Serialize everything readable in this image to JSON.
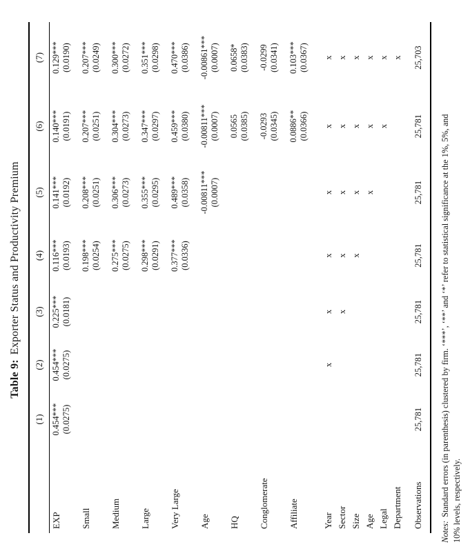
{
  "title": {
    "label": "Table 9:",
    "caption": "Exporter Status and Productivity Premium"
  },
  "table": {
    "column_headers": [
      "(1)",
      "(2)",
      "(3)",
      "(4)",
      "(5)",
      "(6)",
      "(7)"
    ],
    "coef_rows": [
      {
        "label": "EXP",
        "cells": [
          {
            "coef": "0.454***",
            "se": "(0.0275)"
          },
          {
            "coef": "0.454***",
            "se": "(0.0275)"
          },
          {
            "coef": "0.225***",
            "se": "(0.0181)"
          },
          {
            "coef": "0.116***",
            "se": "(0.0193)"
          },
          {
            "coef": "0.141***",
            "se": "(0.0192)"
          },
          {
            "coef": "0.140***",
            "se": "(0.0191)"
          },
          {
            "coef": "0.129***",
            "se": "(0.0190)"
          }
        ]
      },
      {
        "label": "Small",
        "cells": [
          {
            "coef": "",
            "se": ""
          },
          {
            "coef": "",
            "se": ""
          },
          {
            "coef": "",
            "se": ""
          },
          {
            "coef": "0.198***",
            "se": "(0.0254)"
          },
          {
            "coef": "0.208***",
            "se": "(0.0251)"
          },
          {
            "coef": "0.207***",
            "se": "(0.0251)"
          },
          {
            "coef": "0.207***",
            "se": "(0.0249)"
          }
        ]
      },
      {
        "label": "Medium",
        "cells": [
          {
            "coef": "",
            "se": ""
          },
          {
            "coef": "",
            "se": ""
          },
          {
            "coef": "",
            "se": ""
          },
          {
            "coef": "0.275***",
            "se": "(0.0275)"
          },
          {
            "coef": "0.306***",
            "se": "(0.0273)"
          },
          {
            "coef": "0.304***",
            "se": "(0.0273)"
          },
          {
            "coef": "0.300***",
            "se": "(0.0272)"
          }
        ]
      },
      {
        "label": "Large",
        "cells": [
          {
            "coef": "",
            "se": ""
          },
          {
            "coef": "",
            "se": ""
          },
          {
            "coef": "",
            "se": ""
          },
          {
            "coef": "0.298***",
            "se": "(0.0291)"
          },
          {
            "coef": "0.355***",
            "se": "(0.0295)"
          },
          {
            "coef": "0.347***",
            "se": "(0.0297)"
          },
          {
            "coef": "0.351***",
            "se": "(0.0298)"
          }
        ]
      },
      {
        "label": "Very Large",
        "cells": [
          {
            "coef": "",
            "se": ""
          },
          {
            "coef": "",
            "se": ""
          },
          {
            "coef": "",
            "se": ""
          },
          {
            "coef": "0.377***",
            "se": "(0.0336)"
          },
          {
            "coef": "0.489***",
            "se": "(0.0358)"
          },
          {
            "coef": "0.459***",
            "se": "(0.0380)"
          },
          {
            "coef": "0.470***",
            "se": "(0.0386)"
          }
        ]
      },
      {
        "label": "Age",
        "cells": [
          {
            "coef": "",
            "se": ""
          },
          {
            "coef": "",
            "se": ""
          },
          {
            "coef": "",
            "se": ""
          },
          {
            "coef": "",
            "se": ""
          },
          {
            "coef": "-0.00811***",
            "se": "(0.0007)"
          },
          {
            "coef": "-0.00811***",
            "se": "(0.0007)"
          },
          {
            "coef": "-0.00861***",
            "se": "(0.0007)"
          }
        ]
      },
      {
        "label": "HQ",
        "cells": [
          {
            "coef": "",
            "se": ""
          },
          {
            "coef": "",
            "se": ""
          },
          {
            "coef": "",
            "se": ""
          },
          {
            "coef": "",
            "se": ""
          },
          {
            "coef": "",
            "se": ""
          },
          {
            "coef": "0.0565",
            "se": "(0.0385)"
          },
          {
            "coef": "0.0658*",
            "se": "(0.0383)"
          }
        ]
      },
      {
        "label": "Conglomerate",
        "cells": [
          {
            "coef": "",
            "se": ""
          },
          {
            "coef": "",
            "se": ""
          },
          {
            "coef": "",
            "se": ""
          },
          {
            "coef": "",
            "se": ""
          },
          {
            "coef": "",
            "se": ""
          },
          {
            "coef": "-0.0293",
            "se": "(0.0345)"
          },
          {
            "coef": "-0.0299",
            "se": "(0.0341)"
          }
        ]
      },
      {
        "label": "Affiliate",
        "cells": [
          {
            "coef": "",
            "se": ""
          },
          {
            "coef": "",
            "se": ""
          },
          {
            "coef": "",
            "se": ""
          },
          {
            "coef": "",
            "se": ""
          },
          {
            "coef": "",
            "se": ""
          },
          {
            "coef": "0.0886**",
            "se": "(0.0366)"
          },
          {
            "coef": "0.103***",
            "se": "(0.0367)"
          }
        ]
      }
    ],
    "control_rows": [
      {
        "label": "Year",
        "marks": [
          "",
          "x",
          "x",
          "x",
          "x",
          "x",
          "x"
        ]
      },
      {
        "label": "Sector",
        "marks": [
          "",
          "",
          "x",
          "x",
          "x",
          "x",
          "x"
        ]
      },
      {
        "label": "Size",
        "marks": [
          "",
          "",
          "",
          "x",
          "x",
          "x",
          "x"
        ]
      },
      {
        "label": "Age",
        "marks": [
          "",
          "",
          "",
          "",
          "x",
          "x",
          "x"
        ]
      },
      {
        "label": "Legal",
        "marks": [
          "",
          "",
          "",
          "",
          "",
          "x",
          "x"
        ]
      },
      {
        "label": "Department",
        "marks": [
          "",
          "",
          "",
          "",
          "",
          "",
          "x"
        ]
      }
    ],
    "observations": {
      "label": "Observations",
      "values": [
        "25,781",
        "25,781",
        "25,781",
        "25,781",
        "25,781",
        "25,781",
        "25,703"
      ]
    }
  },
  "notes": {
    "label": "Notes:",
    "line1": "Standard errors (in parenthesis) clustered by firm. ‘***’, ‘**’ and ‘*’ refer to statistical significance at the 1%, 5%, and",
    "line2": "10% levels, respectively."
  }
}
